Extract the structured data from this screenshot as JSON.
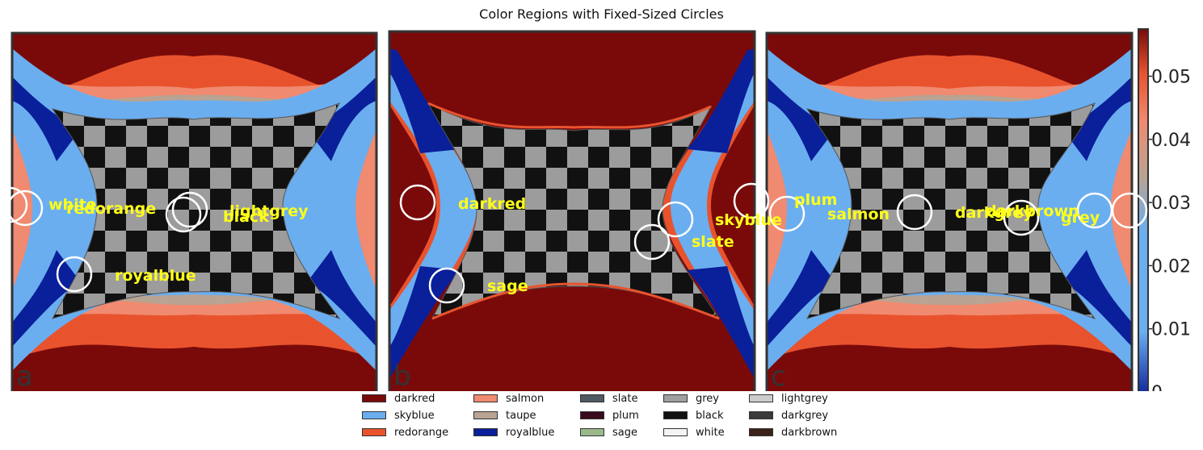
{
  "title": "Color Regions with Fixed-Sized Circles",
  "colorbar": {
    "ticks": [
      "0",
      "0.01",
      "0.02",
      "0.03",
      "0.04",
      "0.05"
    ]
  },
  "panels": [
    {
      "letter": "a",
      "labels": [
        "white",
        "redorange",
        "black",
        "lightgrey",
        "royalblue"
      ]
    },
    {
      "letter": "b",
      "labels": [
        "darkred",
        "skyblue",
        "slate",
        "sage"
      ]
    },
    {
      "letter": "c",
      "labels": [
        "plum",
        "salmon",
        "darkgrey",
        "darkbrown",
        "grey"
      ]
    }
  ],
  "legend": [
    {
      "name": "darkred",
      "color": "#7a0a0a"
    },
    {
      "name": "skyblue",
      "color": "#6aaef0"
    },
    {
      "name": "redorange",
      "color": "#e8532e"
    },
    {
      "name": "salmon",
      "color": "#f08a70"
    },
    {
      "name": "taupe",
      "color": "#b9a392"
    },
    {
      "name": "royalblue",
      "color": "#0a1f9a"
    },
    {
      "name": "slate",
      "color": "#505a62"
    },
    {
      "name": "plum",
      "color": "#3a0a1e"
    },
    {
      "name": "sage",
      "color": "#9ab88a"
    },
    {
      "name": "grey",
      "color": "#a0a0a0"
    },
    {
      "name": "black",
      "color": "#111111"
    },
    {
      "name": "white",
      "color": "#f4f4f4"
    },
    {
      "name": "lightgrey",
      "color": "#cccccc"
    },
    {
      "name": "darkgrey",
      "color": "#3a3a3a"
    },
    {
      "name": "darkbrown",
      "color": "#3a2218"
    }
  ]
}
